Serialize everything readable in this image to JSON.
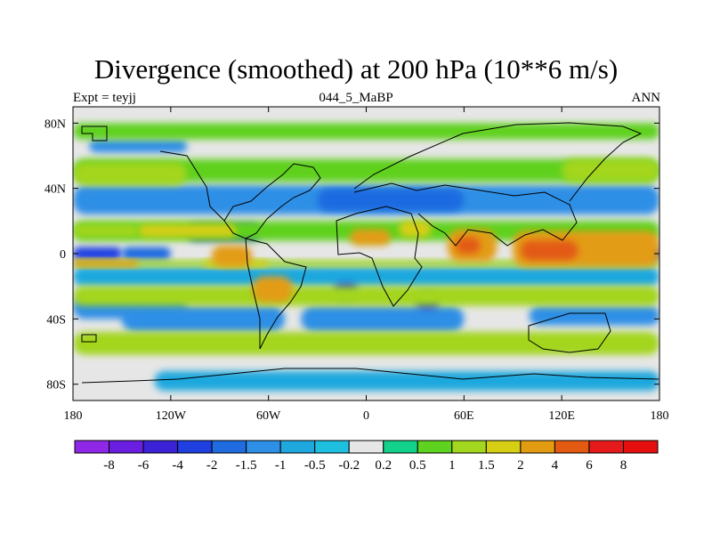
{
  "title": "Divergence (smoothed) at 200 hPa (10**6 m/s)",
  "subtitle_left": "Expt = teyjj",
  "subtitle_center": "044_5_MaBP",
  "subtitle_right": "ANN",
  "chart_data": {
    "type": "contour-map",
    "variable": "Divergence (smoothed)",
    "level": "200 hPa",
    "units": "10**6 m/s",
    "x_ticks": [
      {
        "value": -180,
        "label": "180"
      },
      {
        "value": -120,
        "label": "120W"
      },
      {
        "value": -60,
        "label": "60W"
      },
      {
        "value": 0,
        "label": "0"
      },
      {
        "value": 60,
        "label": "60E"
      },
      {
        "value": 120,
        "label": "120E"
      },
      {
        "value": 180,
        "label": "180"
      }
    ],
    "y_ticks": [
      {
        "value": 80,
        "label": "80N"
      },
      {
        "value": 40,
        "label": "40N"
      },
      {
        "value": 0,
        "label": "0"
      },
      {
        "value": -40,
        "label": "40S"
      },
      {
        "value": -80,
        "label": "80S"
      }
    ],
    "xlim": [
      -180,
      180
    ],
    "ylim": [
      -90,
      90
    ],
    "colorbar": {
      "labels": [
        "-8",
        "-6",
        "-4",
        "-2",
        "-1.5",
        "-1",
        "-0.5",
        "-0.2",
        "0.2",
        "0.5",
        "1",
        "1.5",
        "2",
        "4",
        "6",
        "8"
      ],
      "colors": [
        "#8f28e6",
        "#6a1fe0",
        "#3c22d6",
        "#1f3fe0",
        "#1f6be0",
        "#2e8fe6",
        "#1fa8de",
        "#1fbfe0",
        "#e6e6e6",
        "#12d18a",
        "#5fd11f",
        "#a3d61f",
        "#d6cf14",
        "#e39c12",
        "#e35a12",
        "#e61a1a",
        "#e60f0f"
      ]
    },
    "anomaly_regions": [
      {
        "category": "-1",
        "lon": [
          -180,
          180
        ],
        "lat": [
          24,
          42
        ]
      },
      {
        "category": "-0.5",
        "lon": [
          -180,
          180
        ],
        "lat": [
          -20,
          -8
        ]
      },
      {
        "category": "-1",
        "lon": [
          -180,
          -110
        ],
        "lat": [
          -40,
          -26
        ]
      },
      {
        "category": "-1",
        "lon": [
          -150,
          -50
        ],
        "lat": [
          -48,
          -32
        ]
      },
      {
        "category": "-1",
        "lon": [
          -40,
          60
        ],
        "lat": [
          -48,
          -32
        ]
      },
      {
        "category": "-1",
        "lon": [
          100,
          180
        ],
        "lat": [
          -44,
          -32
        ]
      },
      {
        "category": "-2",
        "lon": [
          -180,
          -150
        ],
        "lat": [
          -4,
          4
        ]
      },
      {
        "category": "-1.5",
        "lon": [
          -150,
          -120
        ],
        "lat": [
          -4,
          4
        ]
      },
      {
        "category": "-2",
        "lon": [
          -110,
          -65
        ],
        "lat": [
          8,
          18
        ]
      },
      {
        "category": "-1.5",
        "lon": [
          -30,
          60
        ],
        "lat": [
          26,
          40
        ]
      },
      {
        "category": "-2",
        "lon": [
          -20,
          -5
        ],
        "lat": [
          -28,
          -18
        ]
      },
      {
        "category": "-2",
        "lon": [
          30,
          45
        ],
        "lat": [
          -34,
          -24
        ]
      },
      {
        "category": "-2",
        "lon": [
          130,
          180
        ],
        "lat": [
          -4,
          4
        ]
      },
      {
        "category": "-1",
        "lon": [
          -170,
          -110
        ],
        "lat": [
          62,
          70
        ]
      },
      {
        "category": "-0.5",
        "lon": [
          -130,
          180
        ],
        "lat": [
          -84,
          -72
        ]
      },
      {
        "category": "0.5",
        "lon": [
          -180,
          180
        ],
        "lat": [
          44,
          58
        ]
      },
      {
        "category": "1",
        "lon": [
          -180,
          -110
        ],
        "lat": [
          42,
          56
        ]
      },
      {
        "category": "1",
        "lon": [
          120,
          180
        ],
        "lat": [
          44,
          58
        ]
      },
      {
        "category": "0.5",
        "lon": [
          -180,
          180
        ],
        "lat": [
          8,
          20
        ]
      },
      {
        "category": "1",
        "lon": [
          -180,
          -140
        ],
        "lat": [
          10,
          18
        ]
      },
      {
        "category": "1.5",
        "lon": [
          -140,
          -80
        ],
        "lat": [
          10,
          18
        ]
      },
      {
        "category": "1",
        "lon": [
          -180,
          180
        ],
        "lat": [
          -8,
          -4
        ]
      },
      {
        "category": "1.5",
        "lon": [
          -100,
          -60
        ],
        "lat": [
          -8,
          -4
        ]
      },
      {
        "category": "1",
        "lon": [
          -180,
          180
        ],
        "lat": [
          -32,
          -20
        ]
      },
      {
        "category": "1",
        "lon": [
          -180,
          180
        ],
        "lat": [
          -62,
          -48
        ]
      },
      {
        "category": "0.5",
        "lon": [
          -180,
          180
        ],
        "lat": [
          70,
          80
        ]
      },
      {
        "category": "2",
        "lon": [
          -10,
          15
        ],
        "lat": [
          5,
          15
        ]
      },
      {
        "category": "2",
        "lon": [
          50,
          80
        ],
        "lat": [
          -5,
          15
        ]
      },
      {
        "category": "4",
        "lon": [
          55,
          70
        ],
        "lat": [
          0,
          10
        ]
      },
      {
        "category": "2",
        "lon": [
          90,
          180
        ],
        "lat": [
          -8,
          14
        ]
      },
      {
        "category": "4",
        "lon": [
          95,
          130
        ],
        "lat": [
          -4,
          8
        ]
      },
      {
        "category": "2",
        "lon": [
          -180,
          -140
        ],
        "lat": [
          -8,
          -4
        ]
      },
      {
        "category": "2",
        "lon": [
          -95,
          -70
        ],
        "lat": [
          -8,
          5
        ]
      },
      {
        "category": "2",
        "lon": [
          -70,
          -45
        ],
        "lat": [
          -30,
          -14
        ]
      },
      {
        "category": "1.5",
        "lon": [
          20,
          40
        ],
        "lat": [
          10,
          20
        ]
      }
    ]
  }
}
